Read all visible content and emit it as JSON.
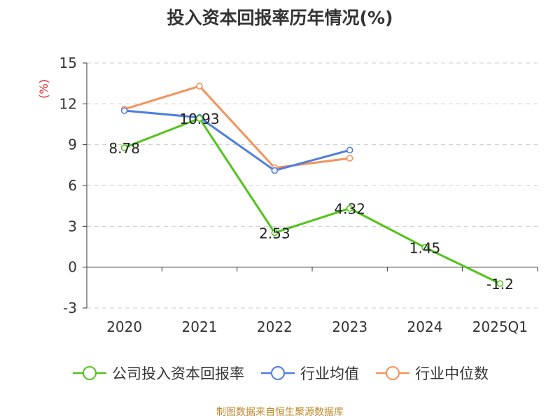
{
  "title": "投入资本回报率历年情况(%)",
  "source": "制图数据来自恒生聚源数据库",
  "chart_data": {
    "type": "line",
    "title": "投入资本回报率历年情况(%)",
    "ylabel": "(%)",
    "xlabel": "",
    "categories": [
      "2020",
      "2021",
      "2022",
      "2023",
      "2024",
      "2025Q1"
    ],
    "yticks": [
      "-3",
      "0",
      "3",
      "6",
      "9",
      "12",
      "15"
    ],
    "ylim": [
      -3,
      15
    ],
    "grid": true,
    "legend_position": "bottom",
    "series": [
      {
        "name": "公司投入资本回报率",
        "color": "#52c41a",
        "values": [
          8.78,
          10.93,
          2.53,
          4.32,
          1.45,
          -1.2
        ],
        "labels": [
          "8.78",
          "10.93",
          "2.53",
          "4.32",
          "1.45",
          "-1.2"
        ]
      },
      {
        "name": "行业均值",
        "color": "#4e7ee0",
        "values": [
          11.5,
          11.0,
          7.1,
          8.6,
          null,
          null
        ]
      },
      {
        "name": "行业中位数",
        "color": "#f5925a",
        "values": [
          11.6,
          13.3,
          7.3,
          8.0,
          null,
          null
        ]
      }
    ]
  }
}
